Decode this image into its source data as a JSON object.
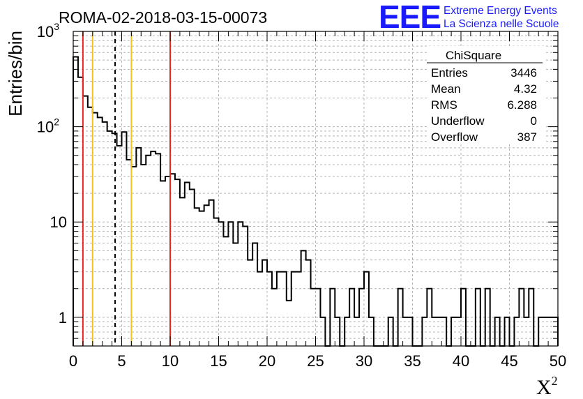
{
  "chart_data": {
    "type": "histogram",
    "title": "ROMA-02-2018-03-15-00073",
    "xlabel": "X",
    "xlabel_superscript": "2",
    "ylabel": "Entries/bin",
    "xlim": [
      0,
      50
    ],
    "ylim": [
      0.5,
      1000
    ],
    "yscale": "log",
    "grid": true,
    "bin_width": 0.5,
    "xticks": [
      0,
      5,
      10,
      15,
      20,
      25,
      30,
      35,
      40,
      45,
      50
    ],
    "xtick_labels": [
      "0",
      "5",
      "10",
      "15",
      "20",
      "25",
      "30",
      "35",
      "40",
      "45",
      "50"
    ],
    "yticks": [
      {
        "value": 1,
        "label": "1"
      },
      {
        "value": 10,
        "label": "10"
      },
      {
        "value": 100,
        "label": "10",
        "exp": "2"
      },
      {
        "value": 1000,
        "label": "10",
        "exp": "3"
      }
    ],
    "values": [
      540,
      330,
      210,
      160,
      140,
      125,
      112,
      90,
      85,
      63,
      88,
      45,
      38,
      60,
      40,
      50,
      55,
      52,
      27,
      30,
      32,
      28,
      18,
      26,
      22,
      14,
      13,
      15,
      17,
      11,
      10,
      7,
      10,
      6,
      10,
      9,
      4,
      6,
      3,
      4,
      3,
      2,
      3,
      3,
      1.5,
      3,
      3,
      5,
      4,
      2,
      2,
      1,
      0,
      2,
      1,
      0,
      1,
      2,
      1,
      2,
      3,
      1,
      0,
      0,
      0,
      1,
      0,
      2,
      1,
      1,
      0,
      0,
      1,
      2,
      1,
      1,
      1,
      0,
      1,
      1,
      2,
      0,
      0,
      2,
      0,
      2,
      0,
      1,
      0,
      1,
      0,
      1,
      2,
      1,
      2,
      0,
      1,
      1,
      1,
      1
    ],
    "vertical_lines": [
      {
        "x": 1.0,
        "color": "#e8281e",
        "style": "solid"
      },
      {
        "x": 2.0,
        "color": "#f2c419",
        "style": "solid"
      },
      {
        "x": 4.32,
        "color": "#000000",
        "style": "dashed"
      },
      {
        "x": 6.0,
        "color": "#f2c419",
        "style": "solid"
      },
      {
        "x": 10.0,
        "color": "#e8281e",
        "style": "solid"
      }
    ],
    "stats": {
      "title": "ChiSquare",
      "rows": [
        {
          "label": "Entries",
          "value": "3446"
        },
        {
          "label": "Mean",
          "value": "4.32"
        },
        {
          "label": "RMS",
          "value": "6.288"
        },
        {
          "label": "Underflow",
          "value": "0"
        },
        {
          "label": "Overflow",
          "value": "387"
        }
      ]
    }
  },
  "logo": {
    "text": "EEE",
    "line1": "Extreme Energy Events",
    "line2": "La Scienza nelle Scuole",
    "color": "#1a1aff"
  }
}
